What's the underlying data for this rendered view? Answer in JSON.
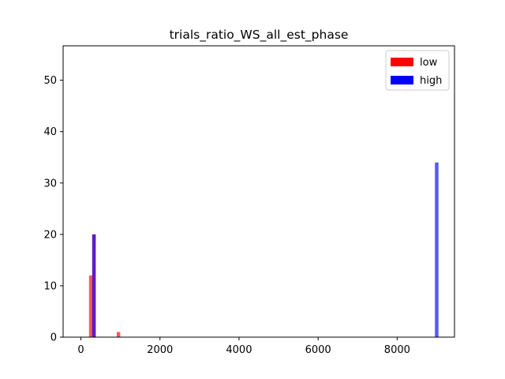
{
  "chart_data": {
    "type": "bar",
    "title": "trials_ratio_WS_all_est_phase",
    "xlabel": "",
    "ylabel": "",
    "xlim": [
      -450,
      9450
    ],
    "ylim": [
      0,
      56.7
    ],
    "xticks": [
      0,
      2000,
      4000,
      6000,
      8000
    ],
    "yticks": [
      0,
      10,
      20,
      30,
      40,
      50
    ],
    "grid": false,
    "legend_position": "top-right",
    "series": [
      {
        "name": "low",
        "color": "#ff0000",
        "bars": [
          {
            "x": 250,
            "value": 12
          },
          {
            "x": 330,
            "value": 20
          },
          {
            "x": 950,
            "value": 1
          }
        ]
      },
      {
        "name": "high",
        "color": "#0000ff",
        "bars": [
          {
            "x": 330,
            "value": 20
          },
          {
            "x": 9000,
            "value": 34
          }
        ]
      }
    ],
    "bar_width": 90,
    "alpha": 0.65
  }
}
